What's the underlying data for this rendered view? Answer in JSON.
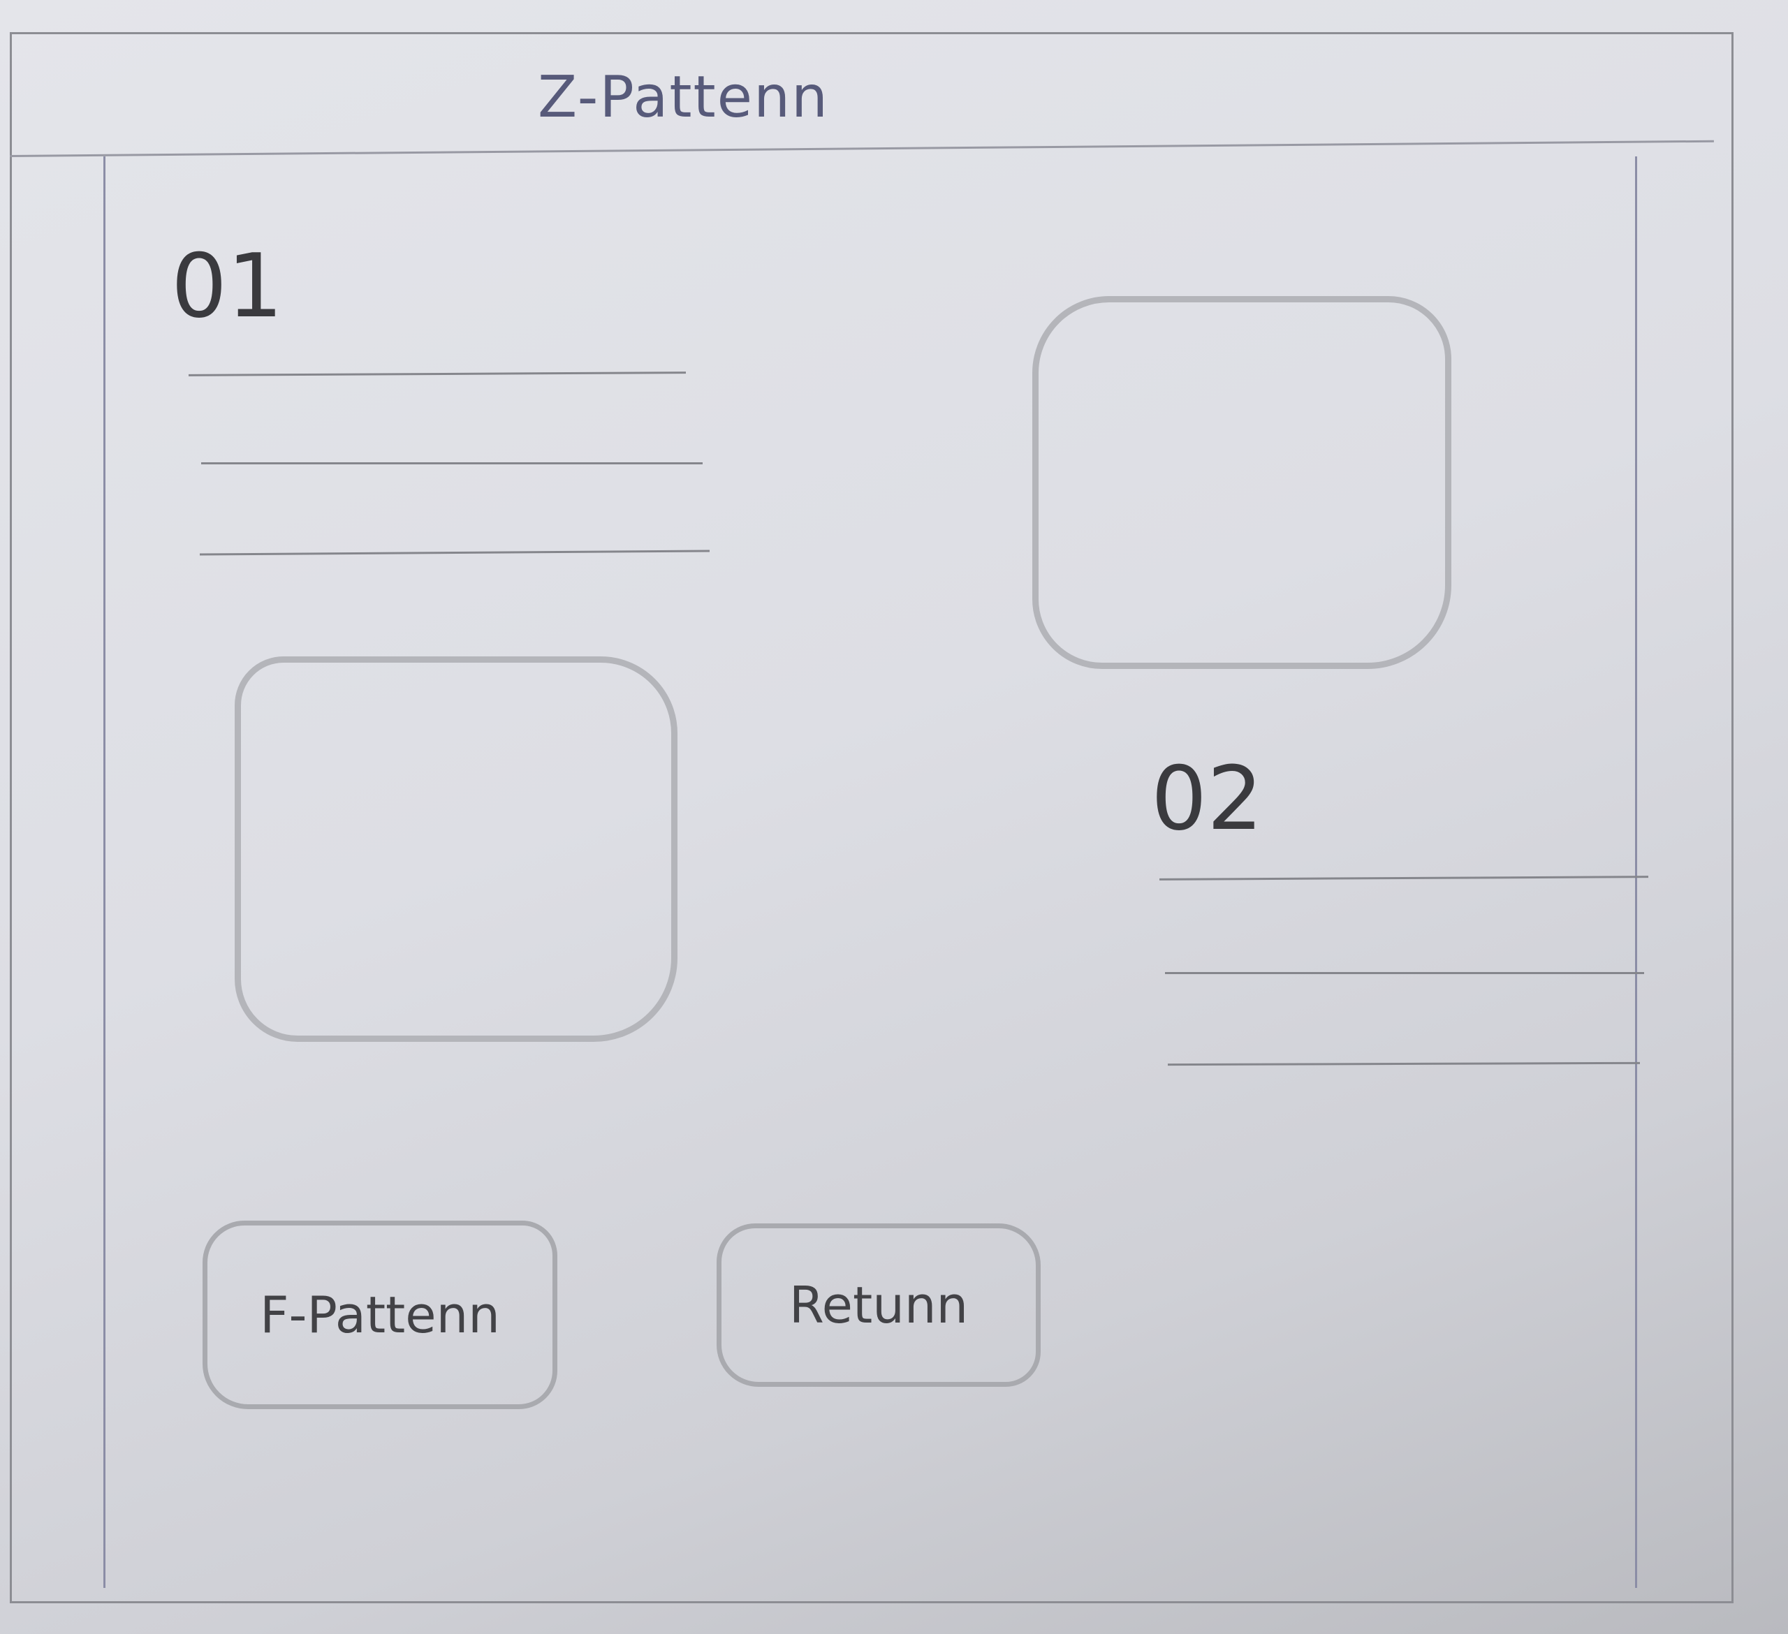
{
  "header": {
    "title": "Z-Pattenn"
  },
  "sections": [
    {
      "number": "01"
    },
    {
      "number": "02"
    }
  ],
  "buttons": {
    "f_pattern_label": "F-Pattenn",
    "return_label": "Retunn"
  }
}
